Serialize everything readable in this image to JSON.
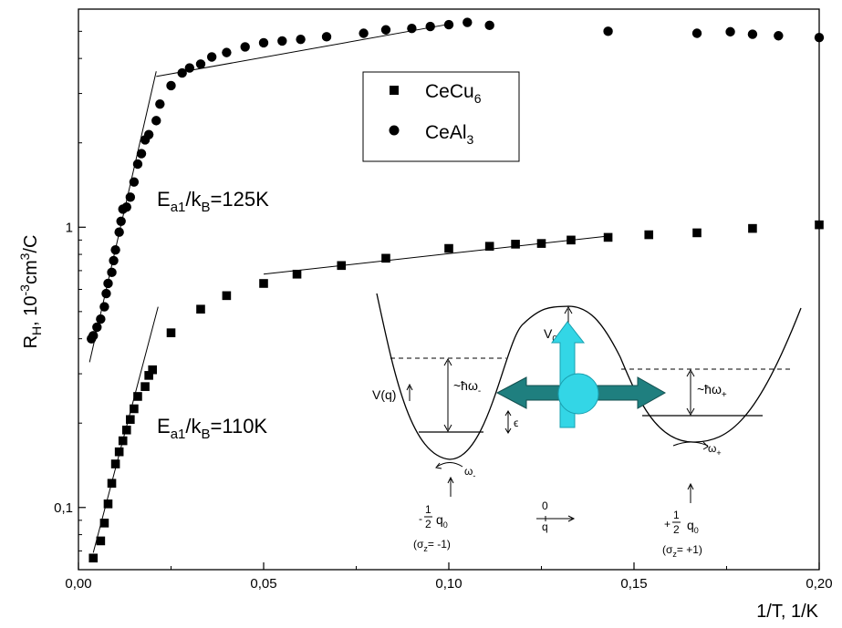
{
  "chart_data": {
    "type": "scatter",
    "title": "",
    "xlabel": "1/T, 1/K",
    "ylabel": "R_H, 10^-3cm^3/C",
    "xlim": [
      0,
      0.2
    ],
    "ylim": [
      0.06,
      6
    ],
    "y_scale": "log",
    "grid": false,
    "legend_position": "top-center",
    "x_ticks": [
      0,
      0.05,
      0.1,
      0.15,
      0.2
    ],
    "x_tick_labels": [
      "0,00",
      "0,05",
      "0,10",
      "0,15",
      "0,20"
    ],
    "y_ticks": [
      0.1,
      1
    ],
    "y_tick_labels": [
      "0,1",
      "1"
    ],
    "series": [
      {
        "name": "CeCu6",
        "marker": "square",
        "points": [
          [
            0.004,
            0.066
          ],
          [
            0.006,
            0.076
          ],
          [
            0.007,
            0.088
          ],
          [
            0.008,
            0.103
          ],
          [
            0.009,
            0.122
          ],
          [
            0.01,
            0.143
          ],
          [
            0.011,
            0.158
          ],
          [
            0.012,
            0.173
          ],
          [
            0.013,
            0.189
          ],
          [
            0.014,
            0.206
          ],
          [
            0.015,
            0.225
          ],
          [
            0.016,
            0.249
          ],
          [
            0.018,
            0.27
          ],
          [
            0.019,
            0.296
          ],
          [
            0.02,
            0.31
          ],
          [
            0.025,
            0.42
          ],
          [
            0.033,
            0.51
          ],
          [
            0.04,
            0.57
          ],
          [
            0.05,
            0.63
          ],
          [
            0.059,
            0.68
          ],
          [
            0.071,
            0.73
          ],
          [
            0.083,
            0.775
          ],
          [
            0.1,
            0.84
          ],
          [
            0.111,
            0.855
          ],
          [
            0.118,
            0.87
          ],
          [
            0.125,
            0.875
          ],
          [
            0.133,
            0.9
          ],
          [
            0.143,
            0.92
          ],
          [
            0.154,
            0.94
          ],
          [
            0.167,
            0.955
          ],
          [
            0.182,
            0.99
          ],
          [
            0.2,
            1.02
          ]
        ]
      },
      {
        "name": "CeAl3",
        "marker": "circle",
        "points": [
          [
            0.0035,
            0.4
          ],
          [
            0.004,
            0.41
          ],
          [
            0.005,
            0.44
          ],
          [
            0.006,
            0.47
          ],
          [
            0.007,
            0.52
          ],
          [
            0.0075,
            0.58
          ],
          [
            0.008,
            0.63
          ],
          [
            0.009,
            0.69
          ],
          [
            0.0095,
            0.76
          ],
          [
            0.01,
            0.83
          ],
          [
            0.011,
            0.96
          ],
          [
            0.0115,
            1.05
          ],
          [
            0.012,
            1.16
          ],
          [
            0.013,
            1.18
          ],
          [
            0.014,
            1.28
          ],
          [
            0.015,
            1.45
          ],
          [
            0.016,
            1.68
          ],
          [
            0.017,
            1.83
          ],
          [
            0.018,
            2.05
          ],
          [
            0.019,
            2.14
          ],
          [
            0.021,
            2.4
          ],
          [
            0.022,
            2.75
          ],
          [
            0.025,
            3.2
          ],
          [
            0.028,
            3.55
          ],
          [
            0.03,
            3.7
          ],
          [
            0.033,
            3.82
          ],
          [
            0.036,
            4.05
          ],
          [
            0.04,
            4.2
          ],
          [
            0.045,
            4.4
          ],
          [
            0.05,
            4.55
          ],
          [
            0.055,
            4.62
          ],
          [
            0.06,
            4.68
          ],
          [
            0.067,
            4.78
          ],
          [
            0.077,
            4.92
          ],
          [
            0.083,
            5.06
          ],
          [
            0.09,
            5.12
          ],
          [
            0.095,
            5.2
          ],
          [
            0.1,
            5.28
          ],
          [
            0.105,
            5.38
          ],
          [
            0.111,
            5.25
          ],
          [
            0.143,
            5.0
          ],
          [
            0.167,
            4.92
          ],
          [
            0.176,
            4.98
          ],
          [
            0.182,
            4.88
          ],
          [
            0.189,
            4.82
          ],
          [
            0.2,
            4.75
          ]
        ]
      }
    ],
    "fit_lines": [
      {
        "points": [
          [
            0.003,
            0.33
          ],
          [
            0.021,
            3.6
          ]
        ]
      },
      {
        "points": [
          [
            0.021,
            3.45
          ],
          [
            0.1,
            5.3
          ]
        ]
      },
      {
        "points": [
          [
            0.004,
            0.069
          ],
          [
            0.0215,
            0.52
          ]
        ]
      },
      {
        "points": [
          [
            0.05,
            0.68
          ],
          [
            0.143,
            0.93
          ]
        ]
      }
    ],
    "annotations": [
      {
        "base": "E",
        "sub": "a1",
        "mid": "/k",
        "sub2": "B",
        "tail": "=125K"
      },
      {
        "base": "E",
        "sub": "a1",
        "mid": "/k",
        "sub2": "B",
        "tail": "=110K"
      }
    ]
  },
  "legend": {
    "items": [
      {
        "base": "CeCu",
        "sub": "6"
      },
      {
        "base": "CeAl",
        "sub": "3"
      }
    ]
  },
  "axes": {
    "ylabel_base": "R",
    "ylabel_sub": "H",
    "ylabel_mid": ", 10",
    "ylabel_sup1": "-3",
    "ylabel_cm": "cm",
    "ylabel_sup2": "3",
    "ylabel_tail": "/C"
  },
  "inset": {
    "potential_label": "V(q)",
    "barrier_base": "V",
    "barrier_sub": "0",
    "left_energy_base": "~ħω",
    "left_energy_sub": "-",
    "right_energy_base": "~ħω",
    "right_energy_sub": "+",
    "epsilon": "ϵ",
    "left_omega_base": "ω",
    "left_omega_sub": "-",
    "right_omega_base": "ω",
    "right_omega_sub": "+",
    "left_q_sign": "-",
    "left_q_num": "1",
    "left_q_den": "2",
    "left_q_base": "q",
    "left_q_sub": "0",
    "left_sigma": "(σ",
    "left_sigma_sub": "z",
    "left_sigma_tail": "= -1)",
    "center_zero": "0",
    "center_q": "q",
    "right_q_sign": "+",
    "right_q_num": "1",
    "right_q_den": "2",
    "right_q_base": "q",
    "right_q_sub": "0",
    "right_sigma": "(σ",
    "right_sigma_sub": "z",
    "right_sigma_tail": "= +1)",
    "arrow_color_h": "#1f7f7f",
    "arrow_color_v": "#33d6e6",
    "circle_color": "#33d6e6"
  }
}
